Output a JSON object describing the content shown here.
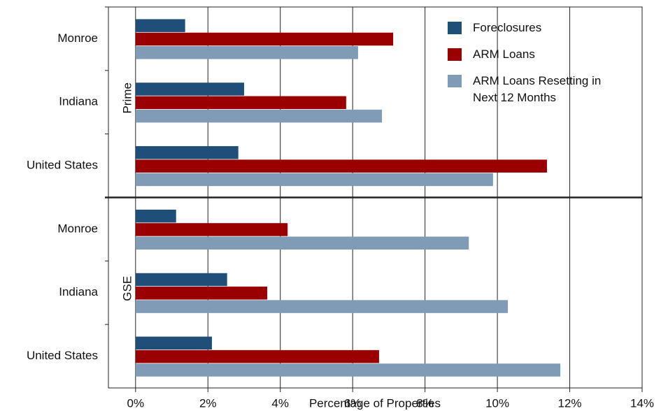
{
  "chart_data": {
    "type": "bar",
    "xlabel": "Percentage of Properties",
    "xlim": [
      -0.75,
      14
    ],
    "xticks": [
      {
        "value": 0,
        "label": "0%"
      },
      {
        "value": 2,
        "label": "2%"
      },
      {
        "value": 4,
        "label": "4%"
      },
      {
        "value": 6,
        "label": "6%"
      },
      {
        "value": 8,
        "label": "8%"
      },
      {
        "value": 10,
        "label": "10%"
      },
      {
        "value": 12,
        "label": "12%"
      },
      {
        "value": 14,
        "label": "14%"
      }
    ],
    "grid": true,
    "legend": "upper right",
    "series": [
      {
        "name": "Foreclosures",
        "color": "#1f4e79"
      },
      {
        "name": "ARM Loans",
        "color": "#9b0000"
      },
      {
        "name": "ARM Loans Resetting in Next 12 Months",
        "color": "#7f9bb5"
      }
    ],
    "panels": [
      {
        "label": "Prime",
        "categories": [
          "Monroe",
          "Indiana",
          "United States"
        ],
        "values": [
          [
            1.37,
            3.0,
            2.84
          ],
          [
            7.12,
            5.82,
            11.37
          ],
          [
            6.15,
            6.81,
            9.88
          ]
        ]
      },
      {
        "label": "GSE",
        "categories": [
          "Monroe",
          "Indiana",
          "United States"
        ],
        "values": [
          [
            1.12,
            2.53,
            2.11
          ],
          [
            4.2,
            3.64,
            6.73
          ],
          [
            9.21,
            10.29,
            11.74
          ]
        ]
      }
    ]
  }
}
